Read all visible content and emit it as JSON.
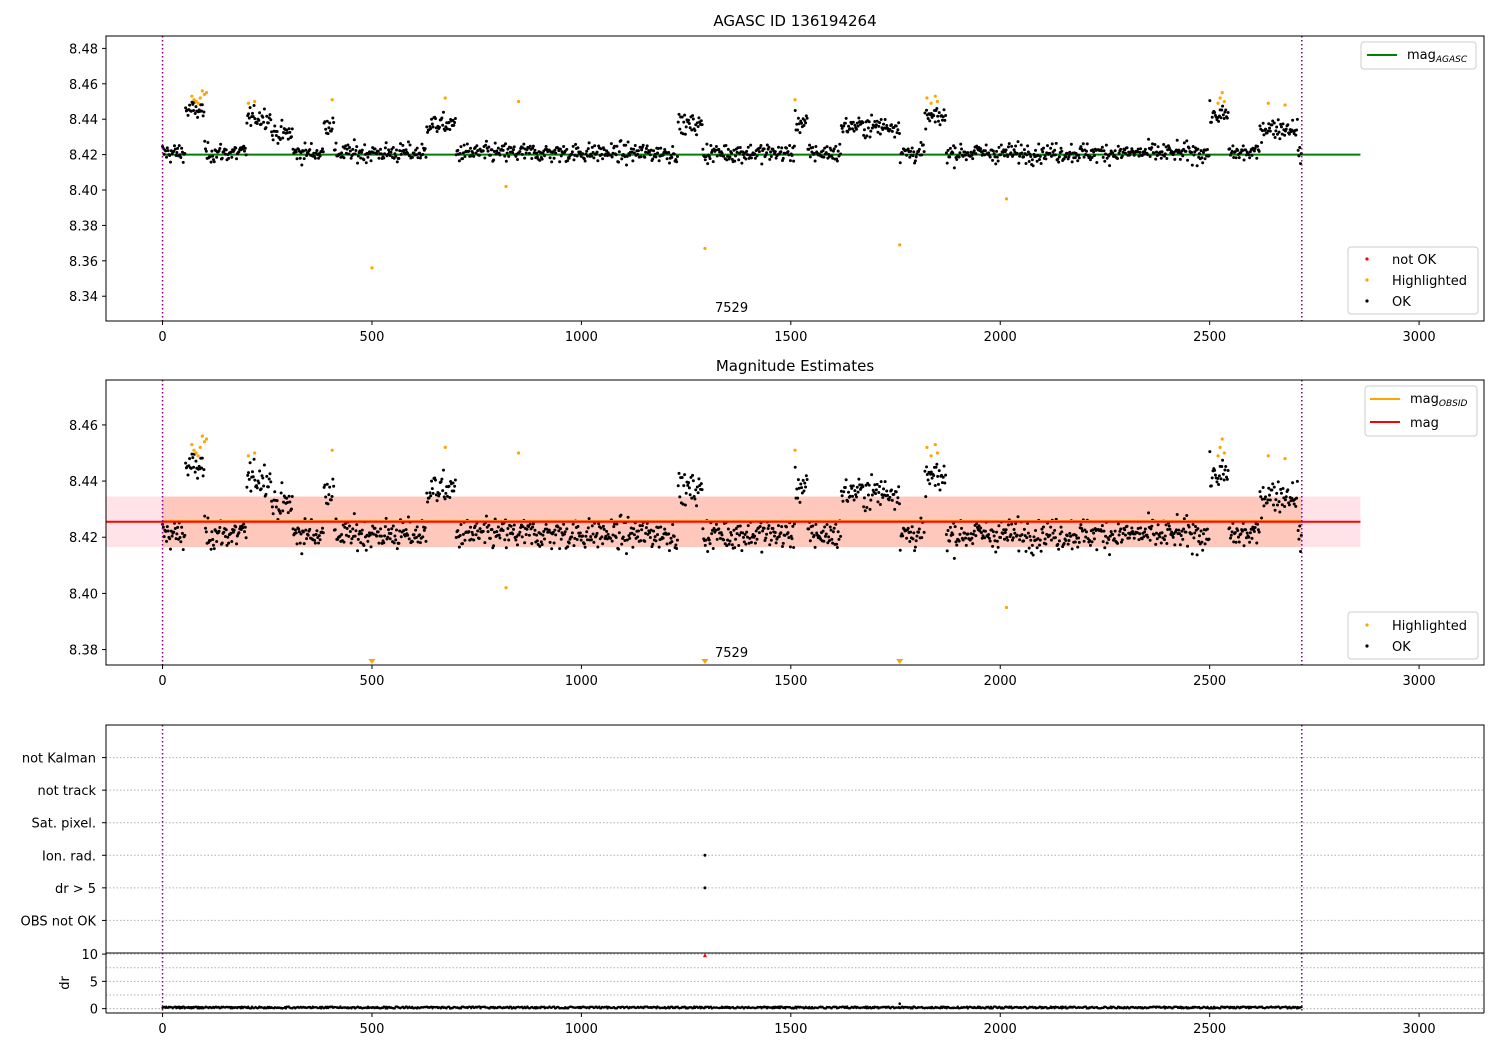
{
  "colors": {
    "ok": "#000000",
    "highlighted": "#ffa500",
    "not_ok": "#ff0000",
    "agasc_line": "#008000",
    "obsid_mag": "#ffa500",
    "mag_line": "#ff0000",
    "band_outer": "#ffc0cb",
    "band_inner": "#ffa07a",
    "vline": "#800080",
    "grid": "#b0b0b0"
  },
  "chart_data": [
    {
      "type": "scatter",
      "title": "AGASC ID 136194264",
      "xlim": [
        -135,
        3155
      ],
      "ylim": [
        8.326,
        8.487
      ],
      "xticks": [
        0,
        500,
        1000,
        1500,
        2000,
        2500,
        3000
      ],
      "xtick_labels": [
        "0",
        "500",
        "1000",
        "1500",
        "2000",
        "2500",
        "3000"
      ],
      "yticks": [
        8.34,
        8.36,
        8.38,
        8.4,
        8.42,
        8.44,
        8.46,
        8.48
      ],
      "ytick_labels": [
        "8.34",
        "8.36",
        "8.38",
        "8.40",
        "8.42",
        "8.44",
        "8.46",
        "8.48"
      ],
      "vlines": [
        0,
        2720
      ],
      "annotation": {
        "text": "7529",
        "x": 1290,
        "y": 8.331
      },
      "mag_agasc": {
        "name": "mag",
        "subscript": "AGASC",
        "y": 8.42,
        "x": [
          0,
          2860
        ]
      },
      "series": [
        {
          "name": "not OK",
          "color": "#ff0000"
        },
        {
          "name": "Highlighted",
          "color": "#ffa500"
        },
        {
          "name": "OK",
          "color": "#000000"
        }
      ],
      "ok_level": 8.421,
      "bumps": [
        {
          "x0": 55,
          "x1": 100,
          "y": 8.445
        },
        {
          "x0": 200,
          "x1": 260,
          "y": 8.441
        },
        {
          "x0": 260,
          "x1": 310,
          "y": 8.432
        },
        {
          "x0": 385,
          "x1": 410,
          "y": 8.437
        },
        {
          "x0": 630,
          "x1": 700,
          "y": 8.437
        },
        {
          "x0": 1230,
          "x1": 1290,
          "y": 8.437
        },
        {
          "x0": 1510,
          "x1": 1540,
          "y": 8.438
        },
        {
          "x0": 1620,
          "x1": 1760,
          "y": 8.436
        },
        {
          "x0": 1820,
          "x1": 1870,
          "y": 8.441
        },
        {
          "x0": 2500,
          "x1": 2545,
          "y": 8.442
        },
        {
          "x0": 2620,
          "x1": 2710,
          "y": 8.435
        }
      ],
      "highlighted": [
        [
          70,
          8.453
        ],
        [
          75,
          8.451
        ],
        [
          80,
          8.45
        ],
        [
          85,
          8.449
        ],
        [
          90,
          8.452
        ],
        [
          95,
          8.456
        ],
        [
          100,
          8.454
        ],
        [
          105,
          8.455
        ],
        [
          205,
          8.449
        ],
        [
          220,
          8.45
        ],
        [
          405,
          8.451
        ],
        [
          675,
          8.452
        ],
        [
          820,
          8.402
        ],
        [
          850,
          8.45
        ],
        [
          1510,
          8.451
        ],
        [
          1825,
          8.452
        ],
        [
          1835,
          8.449
        ],
        [
          1845,
          8.453
        ],
        [
          1850,
          8.45
        ],
        [
          2520,
          8.449
        ],
        [
          2525,
          8.452
        ],
        [
          2530,
          8.455
        ],
        [
          2535,
          8.45
        ],
        [
          2640,
          8.449
        ],
        [
          2680,
          8.448
        ],
        [
          500,
          8.356
        ],
        [
          1295,
          8.367
        ],
        [
          1760,
          8.369
        ],
        [
          2015,
          8.395
        ]
      ],
      "not_ok": []
    },
    {
      "type": "scatter",
      "title": "Magnitude Estimates",
      "xlim": [
        -135,
        3155
      ],
      "ylim": [
        8.3745,
        8.476
      ],
      "xticks": [
        0,
        500,
        1000,
        1500,
        2000,
        2500,
        3000
      ],
      "xtick_labels": [
        "0",
        "500",
        "1000",
        "1500",
        "2000",
        "2500",
        "3000"
      ],
      "yticks": [
        8.38,
        8.4,
        8.42,
        8.44,
        8.46
      ],
      "ytick_labels": [
        "8.38",
        "8.40",
        "8.42",
        "8.44",
        "8.46"
      ],
      "vlines": [
        0,
        2720
      ],
      "annotation": {
        "text": "7529",
        "x": 1290,
        "y": 8.3785
      },
      "mag": {
        "name": "mag",
        "y": 8.4255,
        "x": [
          -135,
          2860
        ]
      },
      "mag_obsid": {
        "name": "mag",
        "subscript": "OBSID",
        "y": 8.4255,
        "x": [
          0,
          2720
        ]
      },
      "band_outer": {
        "x0": -135,
        "x1": 2860,
        "y0": 8.4165,
        "y1": 8.4345
      },
      "band_inner": {
        "x0": 0,
        "x1": 2720,
        "y0": 8.4165,
        "y1": 8.4345
      },
      "series": [
        {
          "name": "Highlighted",
          "color": "#ffa500"
        },
        {
          "name": "OK",
          "color": "#000000"
        }
      ],
      "ok_level": 8.421,
      "bumps": [
        {
          "x0": 55,
          "x1": 100,
          "y": 8.445
        },
        {
          "x0": 200,
          "x1": 260,
          "y": 8.441
        },
        {
          "x0": 260,
          "x1": 310,
          "y": 8.432
        },
        {
          "x0": 385,
          "x1": 410,
          "y": 8.437
        },
        {
          "x0": 630,
          "x1": 700,
          "y": 8.437
        },
        {
          "x0": 1230,
          "x1": 1290,
          "y": 8.437
        },
        {
          "x0": 1510,
          "x1": 1540,
          "y": 8.438
        },
        {
          "x0": 1620,
          "x1": 1760,
          "y": 8.436
        },
        {
          "x0": 1820,
          "x1": 1870,
          "y": 8.441
        },
        {
          "x0": 2500,
          "x1": 2545,
          "y": 8.442
        },
        {
          "x0": 2620,
          "x1": 2710,
          "y": 8.435
        }
      ],
      "highlighted": [
        [
          70,
          8.453
        ],
        [
          75,
          8.451
        ],
        [
          80,
          8.45
        ],
        [
          85,
          8.449
        ],
        [
          90,
          8.452
        ],
        [
          95,
          8.456
        ],
        [
          100,
          8.454
        ],
        [
          105,
          8.455
        ],
        [
          205,
          8.449
        ],
        [
          220,
          8.45
        ],
        [
          405,
          8.451
        ],
        [
          675,
          8.452
        ],
        [
          820,
          8.402
        ],
        [
          850,
          8.45
        ],
        [
          1510,
          8.451
        ],
        [
          1825,
          8.452
        ],
        [
          1835,
          8.449
        ],
        [
          1845,
          8.453
        ],
        [
          1850,
          8.45
        ],
        [
          2520,
          8.449
        ],
        [
          2525,
          8.452
        ],
        [
          2530,
          8.455
        ],
        [
          2535,
          8.45
        ],
        [
          2640,
          8.449
        ],
        [
          2680,
          8.448
        ],
        [
          2015,
          8.395
        ]
      ],
      "below_range_markers": [
        500,
        1295,
        1760
      ]
    },
    {
      "type": "scatter",
      "xlim": [
        -135,
        3155
      ],
      "ylim": [
        0,
        7
      ],
      "vlines": [
        0,
        2720
      ],
      "categories": [
        "not Kalman",
        "not track",
        "Sat. pixel.",
        "Ion. rad.",
        "dr > 5",
        "OBS not OK"
      ],
      "flag_points": [
        {
          "category": "Ion. rad.",
          "x": 1295
        },
        {
          "category": "dr > 5",
          "x": 1295
        }
      ]
    },
    {
      "type": "scatter",
      "ylabel": "dr",
      "xlim": [
        -135,
        3155
      ],
      "ylim": [
        -0.8,
        10.2
      ],
      "xticks": [
        0,
        500,
        1000,
        1500,
        2000,
        2500,
        3000
      ],
      "xtick_labels": [
        "0",
        "500",
        "1000",
        "1500",
        "2000",
        "2500",
        "3000"
      ],
      "yticks": [
        0,
        5,
        10
      ],
      "ytick_labels": [
        "0",
        "5",
        "10"
      ],
      "vlines": [
        0,
        2720
      ],
      "baseline": 0.2,
      "clipped_marker": {
        "x": 1295,
        "y": 9.8
      },
      "spike": {
        "x": 1760,
        "y": 0.9
      }
    }
  ]
}
